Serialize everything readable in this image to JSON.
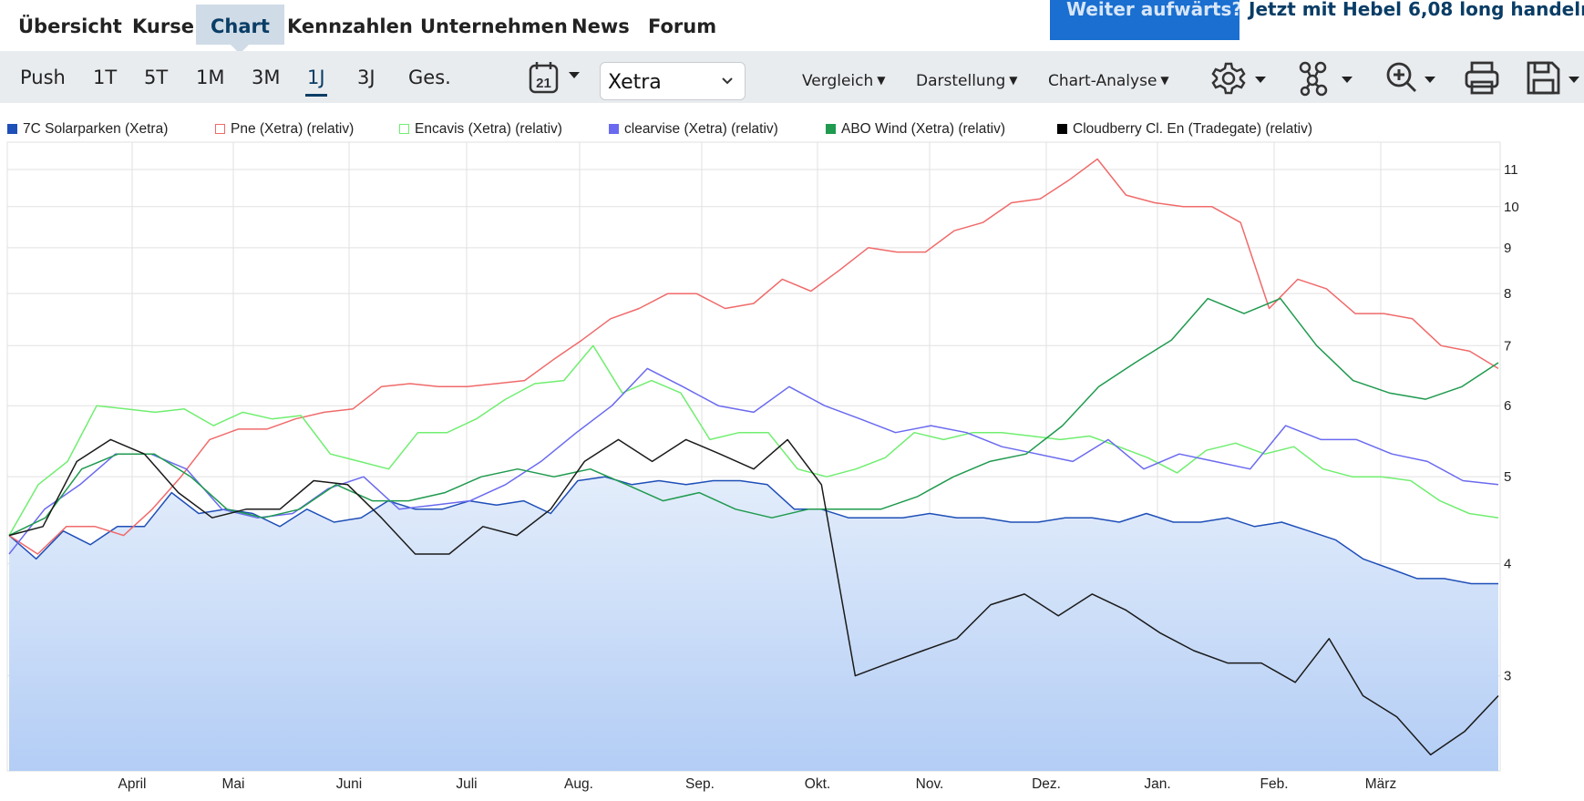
{
  "nav": {
    "items": [
      "Übersicht",
      "Kurse",
      "Chart",
      "Kennzahlen",
      "Unternehmen",
      "News",
      "Forum"
    ],
    "active": "Chart",
    "promo_question": "Weiter aufwärts?",
    "promo_offer": "Jetzt mit Hebel 6,08 long handeln"
  },
  "toolbar": {
    "timeframes": [
      "Push",
      "1T",
      "5T",
      "1M",
      "3M",
      "1J",
      "3J",
      "Ges."
    ],
    "active_timeframe": "1J",
    "calendar_day": "21",
    "exchange": "Xetra",
    "compare_label": "Vergleich",
    "display_label": "Darstellung",
    "analysis_label": "Chart-Analyse",
    "icons": [
      "calendar-icon",
      "gear-icon",
      "network-icon",
      "zoom-in-icon",
      "print-icon",
      "save-icon"
    ]
  },
  "colors": {
    "accent": "#0a3d66",
    "promo_blue": "#1a6fd0",
    "toolbar_bg": "#e9ecef",
    "area_top": "#e3edfb",
    "area_bottom": "#b3cdf5"
  },
  "chart_data": {
    "type": "line",
    "scale": "log",
    "grid": true,
    "ylim": [
      2.35,
      11.8
    ],
    "yticks": [
      3,
      4,
      5,
      6,
      7,
      8,
      9,
      10,
      11
    ],
    "xlabels": [
      "April",
      "Mai",
      "Juni",
      "Juli",
      "Aug.",
      "Sep.",
      "Okt.",
      "Nov.",
      "Dez.",
      "Jan.",
      "Feb.",
      "März"
    ],
    "x_positions_in_days": [
      0,
      14,
      44,
      75,
      105,
      136,
      167,
      197,
      228,
      258,
      289,
      320,
      348,
      365
    ],
    "x_tick_days": [
      44,
      75,
      105,
      136,
      167,
      197,
      228,
      258,
      289,
      320,
      348
    ],
    "legend_position": "top",
    "series": [
      {
        "name": "7C Solarparken (Xetra)",
        "color": "#1f4fb8",
        "fill": true,
        "values": [
          4.3,
          4.05,
          4.35,
          4.2,
          4.4,
          4.4,
          4.8,
          4.55,
          4.6,
          4.55,
          4.4,
          4.6,
          4.45,
          4.5,
          4.7,
          4.6,
          4.6,
          4.7,
          4.65,
          4.7,
          4.55,
          4.95,
          5.0,
          4.9,
          4.95,
          4.9,
          4.95,
          4.95,
          4.9,
          4.6,
          4.6,
          4.5,
          4.5,
          4.5,
          4.55,
          4.5,
          4.5,
          4.45,
          4.45,
          4.5,
          4.5,
          4.45,
          4.55,
          4.45,
          4.45,
          4.5,
          4.4,
          4.45,
          4.35,
          4.25,
          4.05,
          3.95,
          3.85,
          3.85,
          3.8,
          3.8
        ]
      },
      {
        "name": "Pne (Xetra) (relativ)",
        "color": "#f06a6a",
        "fill": false,
        "values": [
          4.3,
          4.1,
          4.4,
          4.4,
          4.3,
          4.6,
          5.0,
          5.5,
          5.65,
          5.65,
          5.8,
          5.9,
          5.95,
          6.3,
          6.35,
          6.3,
          6.3,
          6.35,
          6.4,
          6.75,
          7.1,
          7.5,
          7.7,
          8.0,
          8.0,
          7.7,
          7.8,
          8.3,
          8.05,
          8.5,
          9.0,
          8.9,
          8.9,
          9.4,
          9.6,
          10.1,
          10.2,
          10.7,
          11.3,
          10.3,
          10.1,
          10.0,
          10.0,
          9.6,
          7.7,
          8.3,
          8.1,
          7.6,
          7.6,
          7.5,
          7.0,
          6.9,
          6.6
        ]
      },
      {
        "name": "Encavis (Xetra) (relativ)",
        "color": "#70ee70",
        "fill": false,
        "values": [
          4.3,
          4.9,
          5.2,
          6.0,
          5.95,
          5.9,
          5.95,
          5.7,
          5.9,
          5.8,
          5.85,
          5.3,
          5.2,
          5.1,
          5.6,
          5.6,
          5.8,
          6.1,
          6.35,
          6.4,
          7.0,
          6.2,
          6.4,
          6.2,
          5.5,
          5.6,
          5.6,
          5.1,
          5.0,
          5.1,
          5.25,
          5.6,
          5.5,
          5.6,
          5.6,
          5.55,
          5.5,
          5.55,
          5.4,
          5.25,
          5.05,
          5.35,
          5.45,
          5.3,
          5.4,
          5.1,
          5.0,
          5.0,
          4.95,
          4.7,
          4.55,
          4.5
        ]
      },
      {
        "name": "clearvise (Xetra) (relativ)",
        "color": "#6a6af0",
        "fill": false,
        "values": [
          4.1,
          4.6,
          4.9,
          5.3,
          5.3,
          5.1,
          4.6,
          4.5,
          4.55,
          4.85,
          5.0,
          4.6,
          4.65,
          4.7,
          4.9,
          5.2,
          5.6,
          6.0,
          6.6,
          6.3,
          6.0,
          5.9,
          6.3,
          6.0,
          5.8,
          5.6,
          5.7,
          5.6,
          5.4,
          5.3,
          5.2,
          5.5,
          5.1,
          5.3,
          5.2,
          5.1,
          5.7,
          5.5,
          5.5,
          5.3,
          5.2,
          4.95,
          4.9
        ]
      },
      {
        "name": "ABO Wind (Xetra) (relativ)",
        "color": "#1f9a4e",
        "fill": false,
        "values": [
          4.3,
          4.5,
          5.1,
          5.3,
          5.3,
          5.0,
          4.6,
          4.5,
          4.6,
          4.9,
          4.7,
          4.7,
          4.8,
          5.0,
          5.1,
          5.0,
          5.1,
          4.9,
          4.7,
          4.8,
          4.6,
          4.5,
          4.6,
          4.6,
          4.6,
          4.75,
          5.0,
          5.2,
          5.3,
          5.7,
          6.3,
          6.7,
          7.1,
          7.9,
          7.6,
          7.9,
          7.0,
          6.4,
          6.2,
          6.1,
          6.3,
          6.7
        ]
      },
      {
        "name": "Cloudberry Cl. En (Tradegate) (relativ)",
        "color": "#1a1a1a",
        "fill": false,
        "values": [
          4.3,
          4.4,
          5.2,
          5.5,
          5.3,
          4.8,
          4.5,
          4.6,
          4.6,
          4.95,
          4.9,
          4.5,
          4.1,
          4.1,
          4.4,
          4.3,
          4.6,
          5.2,
          5.5,
          5.2,
          5.5,
          5.3,
          5.1,
          5.5,
          4.9,
          3.0,
          3.1,
          3.2,
          3.3,
          3.6,
          3.7,
          3.5,
          3.7,
          3.55,
          3.35,
          3.2,
          3.1,
          3.1,
          2.95,
          3.3,
          2.85,
          2.7,
          2.45,
          2.6,
          2.85
        ]
      }
    ]
  }
}
